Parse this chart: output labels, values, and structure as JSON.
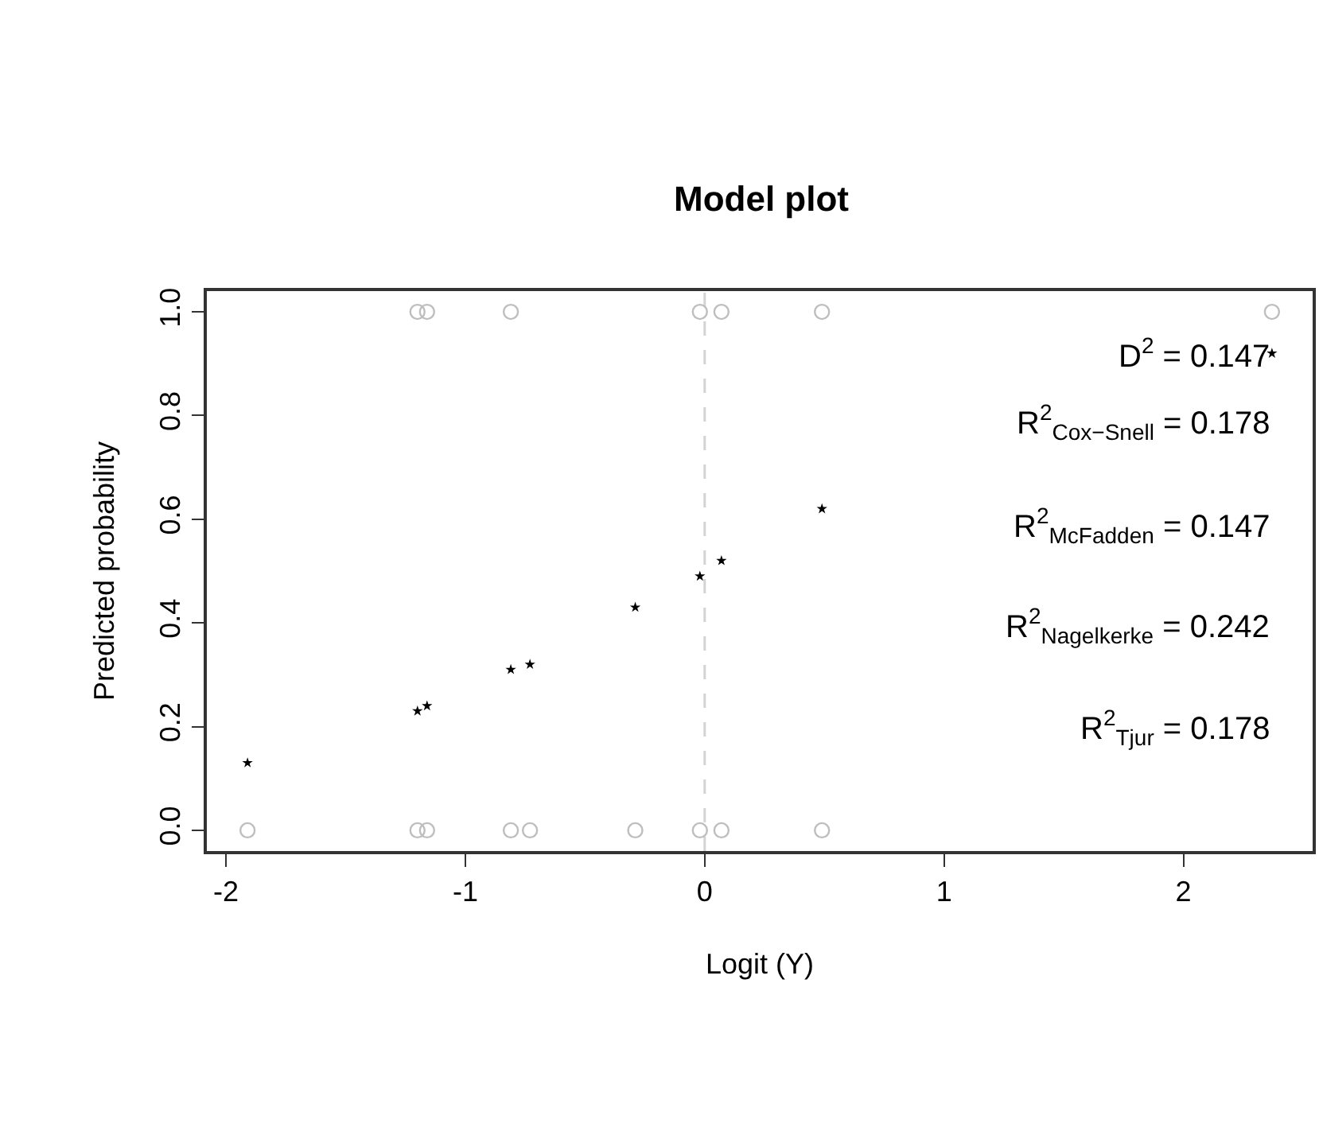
{
  "chart_data": {
    "type": "scatter",
    "title": "Model plot",
    "xlabel": "Logit (Y)",
    "ylabel": "Predicted probability",
    "xlim": [
      -2.08,
      2.54
    ],
    "xticks": [
      -2,
      -1,
      0,
      1,
      2
    ],
    "ylim": [
      -0.04,
      1.04
    ],
    "yticks": [
      {
        "value": 0,
        "label": "0.0"
      },
      {
        "value": 0.2,
        "label": "0.2"
      },
      {
        "value": 0.4,
        "label": "0.4"
      },
      {
        "value": 0.6,
        "label": "0.6"
      },
      {
        "value": 0.8,
        "label": "0.8"
      },
      {
        "value": 1,
        "label": "1.0"
      }
    ],
    "series": [
      {
        "color": "#000000",
        "marker": "star",
        "x": [
          -1.91,
          -1.2,
          -1.16,
          -0.81,
          -0.73,
          -0.29,
          -0.02,
          0.07,
          0.49,
          2.37
        ],
        "values": [
          0.13,
          0.23,
          0.24,
          0.31,
          0.32,
          0.43,
          0.49,
          0.52,
          0.62,
          0.92
        ]
      },
      {
        "color": "#bebebe",
        "marker": "circle",
        "x": [
          -1.2,
          -1.16,
          -0.81,
          -0.02,
          0.07,
          0.49,
          2.37,
          -1.91,
          -1.2,
          -1.16,
          -0.81,
          -0.73,
          -0.29,
          -0.02,
          0.07,
          0.49
        ],
        "values": [
          1,
          1,
          1,
          1,
          1,
          1,
          1,
          0,
          0,
          0,
          0,
          0,
          0,
          0,
          0,
          0
        ]
      }
    ],
    "ref_lines": [
      {
        "axis": "x",
        "value": 0,
        "color": "#d3d3d3",
        "line_style": "dashed"
      }
    ],
    "annotations": [
      "D$^{2}$ = 0.147",
      "R$^{2}$$_{Cox−Snell}$ = 0.178",
      "R$^{2}$$_{McFadden}$ = 0.147",
      "R$^{2}$$_{Nagelkerke}$ = 0.242",
      "R$^{2}$$_{Tjur}$ = 0.178"
    ]
  }
}
